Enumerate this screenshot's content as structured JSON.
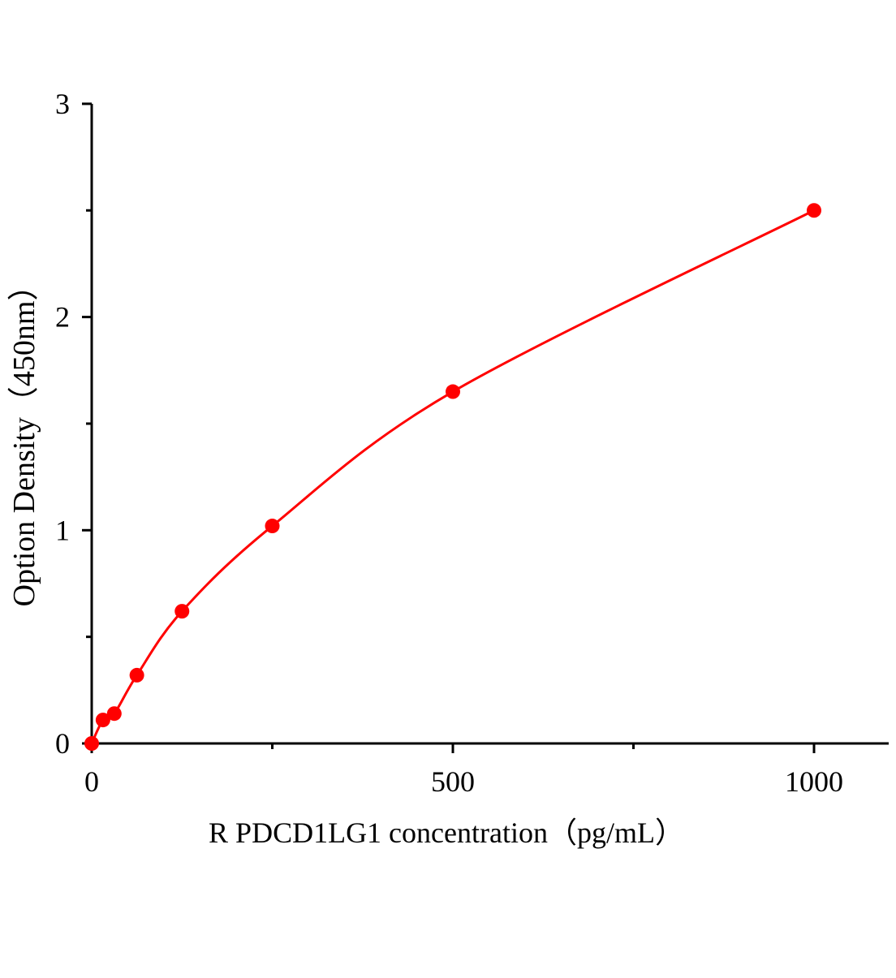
{
  "chart_data": {
    "type": "scatter",
    "title": "",
    "xlabel": "R PDCD1LG1  concentration（pg/mL）",
    "ylabel": "Option Density（450nm）",
    "xlim": [
      0,
      1100
    ],
    "ylim": [
      0,
      3
    ],
    "x_ticks": [
      0,
      500,
      1000
    ],
    "x_tick_labels": [
      "0",
      "500",
      "1000"
    ],
    "x_minor_ticks": [
      250,
      750
    ],
    "y_ticks": [
      0,
      1,
      2,
      3
    ],
    "y_tick_labels": [
      "0",
      "1",
      "2",
      "3"
    ],
    "y_minor_ticks": [
      0.5,
      1.5,
      2.5
    ],
    "grid": false,
    "legend": "none",
    "series": [
      {
        "x": [
          0,
          15.6,
          31.25,
          62.5,
          125,
          250,
          500,
          1000
        ],
        "y": [
          0,
          0.11,
          0.14,
          0.32,
          0.62,
          1.02,
          1.65,
          2.5
        ],
        "color": "#ff0000",
        "marker": "circle",
        "fit_curve": true
      }
    ]
  }
}
